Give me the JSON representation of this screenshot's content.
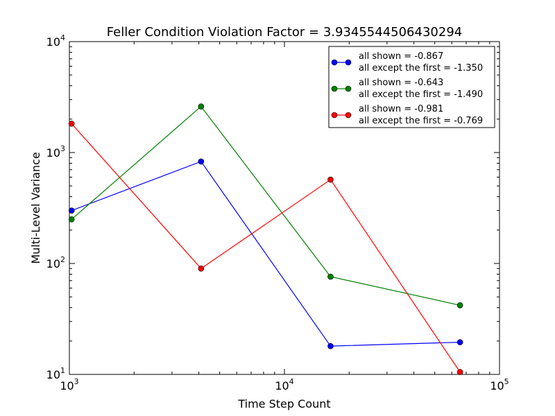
{
  "chart_data": {
    "type": "line",
    "title": "Feller Condition Violation Factor = 3.9345544506430294",
    "xlabel": "Time Step Count",
    "ylabel": "Multi-Level Variance",
    "xscale": "log",
    "yscale": "log",
    "xlim": [
      1000,
      100000
    ],
    "ylim": [
      10,
      10000
    ],
    "x_ticks": [
      {
        "value": 1000,
        "base": "10",
        "exp": "3"
      },
      {
        "value": 10000,
        "base": "10",
        "exp": "4"
      },
      {
        "value": 100000,
        "base": "10",
        "exp": "5"
      }
    ],
    "y_ticks": [
      {
        "value": 10,
        "base": "10",
        "exp": "1"
      },
      {
        "value": 100,
        "base": "10",
        "exp": "2"
      },
      {
        "value": 1000,
        "base": "10",
        "exp": "3"
      },
      {
        "value": 10000,
        "base": "10",
        "exp": "4"
      }
    ],
    "grid": false,
    "legend_position": "top-right",
    "series": [
      {
        "color": "#0000ff",
        "legend_lines": [
          "all shown = -0.867",
          "all except the first = -1.350"
        ],
        "x": [
          1024,
          4096,
          16384,
          65536
        ],
        "y": [
          300,
          830,
          18,
          19.5
        ]
      },
      {
        "color": "#008000",
        "legend_lines": [
          "all shown = -0.643",
          "all except the first = -1.490"
        ],
        "x": [
          1024,
          4096,
          16384,
          65536
        ],
        "y": [
          250,
          2600,
          76,
          42
        ]
      },
      {
        "color": "#ff0000",
        "legend_lines": [
          "all shown = -0.981",
          "all except the first = -0.769"
        ],
        "x": [
          1024,
          4096,
          16384,
          65536
        ],
        "y": [
          1820,
          90,
          570,
          10.5
        ]
      }
    ]
  }
}
